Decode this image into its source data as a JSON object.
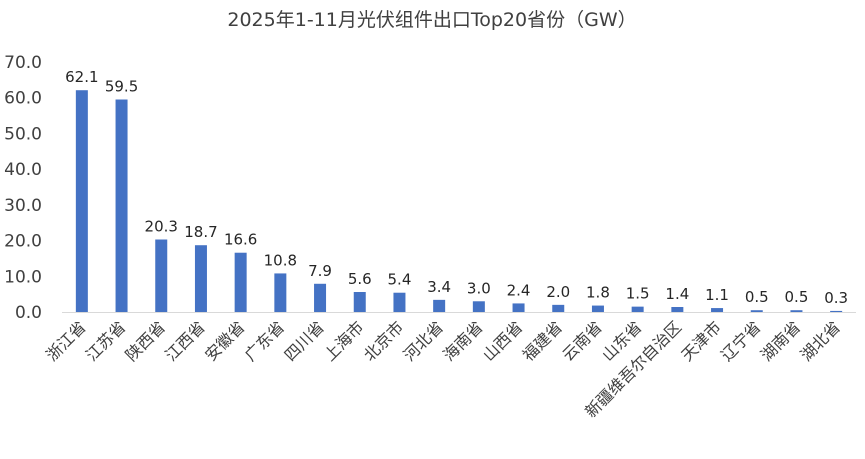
{
  "chart_data": {
    "type": "bar",
    "title": "2025年1-11月光伏组件出口Top20省份（GW）",
    "xlabel": "",
    "ylabel": "",
    "ylim": [
      0,
      70
    ],
    "yticks": [
      "0.0",
      "10.0",
      "20.0",
      "30.0",
      "40.0",
      "50.0",
      "60.0",
      "70.0"
    ],
    "grid": false,
    "legend": "none",
    "bar_color": "#4472c4",
    "categories": [
      "浙江省",
      "江苏省",
      "陕西省",
      "江西省",
      "安徽省",
      "广东省",
      "四川省",
      "上海市",
      "北京市",
      "河北省",
      "海南省",
      "山西省",
      "福建省",
      "云南省",
      "山东省",
      "新疆维吾尔自治区",
      "天津市",
      "辽宁省",
      "湖南省",
      "湖北省"
    ],
    "values": [
      62.1,
      59.5,
      20.3,
      18.7,
      16.6,
      10.8,
      7.9,
      5.6,
      5.4,
      3.4,
      3.0,
      2.4,
      2.0,
      1.8,
      1.5,
      1.4,
      1.1,
      0.5,
      0.5,
      0.3
    ],
    "value_labels": [
      "62.1",
      "59.5",
      "20.3",
      "18.7",
      "16.6",
      "10.8",
      "7.9",
      "5.6",
      "5.4",
      "3.4",
      "3.0",
      "2.4",
      "2.0",
      "1.8",
      "1.5",
      "1.4",
      "1.1",
      "0.5",
      "0.5",
      "0.3"
    ]
  }
}
